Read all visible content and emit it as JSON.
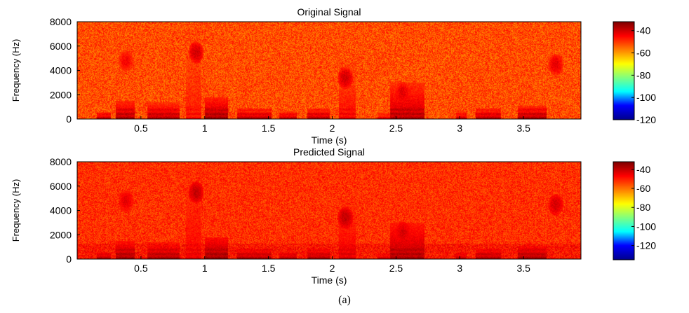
{
  "caption": "(a)",
  "colormap": [
    "#00008f",
    "#0000ff",
    "#00ffff",
    "#80ff80",
    "#ffff00",
    "#ff8000",
    "#ff0000",
    "#800000"
  ],
  "chart_data": [
    {
      "type": "heatmap",
      "title": "Original Signal",
      "xlabel": "Time (s)",
      "ylabel": "Frequency (Hz)",
      "xlim": [
        0,
        3.95
      ],
      "ylim": [
        0,
        8000
      ],
      "xticks": [
        "0.5",
        "1",
        "1.5",
        "2",
        "2.5",
        "3",
        "3.5"
      ],
      "xtick_values": [
        0.5,
        1,
        1.5,
        2,
        2.5,
        3,
        3.5
      ],
      "yticks": [
        "0",
        "2000",
        "4000",
        "6000",
        "8000"
      ],
      "ytick_values": [
        0,
        2000,
        4000,
        6000,
        8000
      ],
      "colorbar": {
        "ticks": [
          "-40",
          "-60",
          "-80",
          "-100",
          "-120"
        ],
        "tick_values": [
          -40,
          -60,
          -80,
          -100,
          -120
        ],
        "range": [
          -120,
          -32
        ]
      },
      "background_level": -52,
      "low_band_hz": 0,
      "speech_segments": [
        {
          "t": [
            0.15,
            0.26
          ],
          "f_max": 600,
          "level": -36
        },
        {
          "t": [
            0.3,
            0.45
          ],
          "f_max": 1500,
          "level": -35
        },
        {
          "t": [
            0.55,
            0.8
          ],
          "f_max": 1400,
          "level": -36
        },
        {
          "t": [
            0.85,
            0.97
          ],
          "f_max": 8000,
          "level": -44
        },
        {
          "t": [
            1.0,
            1.18
          ],
          "f_max": 1800,
          "level": -34
        },
        {
          "t": [
            1.25,
            1.52
          ],
          "f_max": 900,
          "level": -36
        },
        {
          "t": [
            1.58,
            1.72
          ],
          "f_max": 700,
          "level": -37
        },
        {
          "t": [
            1.8,
            1.98
          ],
          "f_max": 900,
          "level": -36
        },
        {
          "t": [
            2.05,
            2.18
          ],
          "f_max": 5000,
          "level": -42
        },
        {
          "t": [
            2.35,
            2.45
          ],
          "f_max": 600,
          "level": -40
        },
        {
          "t": [
            2.45,
            2.72
          ],
          "f_max": 3000,
          "level": -36
        },
        {
          "t": [
            2.97,
            3.05
          ],
          "f_max": 700,
          "level": -38
        },
        {
          "t": [
            3.12,
            3.32
          ],
          "f_max": 900,
          "level": -36
        },
        {
          "t": [
            3.45,
            3.68
          ],
          "f_max": 1100,
          "level": -35
        }
      ],
      "hot_spots": [
        {
          "t": 0.38,
          "f": 4800,
          "level": -44
        },
        {
          "t": 0.93,
          "f": 5500,
          "level": -40
        },
        {
          "t": 2.1,
          "f": 3400,
          "level": -40
        },
        {
          "t": 2.55,
          "f": 2200,
          "level": -42
        },
        {
          "t": 3.75,
          "f": 4500,
          "level": -42
        }
      ]
    },
    {
      "type": "heatmap",
      "title": "Predicted Signal",
      "xlabel": "Time (s)",
      "ylabel": "Frequency (Hz)",
      "xlim": [
        0,
        3.95
      ],
      "ylim": [
        0,
        8000
      ],
      "xticks": [
        "0.5",
        "1",
        "1.5",
        "2",
        "2.5",
        "3",
        "3.5"
      ],
      "xtick_values": [
        0.5,
        1,
        1.5,
        2,
        2.5,
        3,
        3.5
      ],
      "yticks": [
        "0",
        "2000",
        "4000",
        "6000",
        "8000"
      ],
      "ytick_values": [
        0,
        2000,
        4000,
        6000,
        8000
      ],
      "colorbar": {
        "ticks": [
          "-40",
          "-60",
          "-80",
          "-100",
          "-120"
        ],
        "tick_values": [
          -40,
          -60,
          -80,
          -100,
          -120
        ],
        "range": [
          -135,
          -32
        ]
      },
      "background_level": -52,
      "low_band_hz": 1300,
      "speech_segments": [
        {
          "t": [
            0.15,
            0.26
          ],
          "f_max": 600,
          "level": -36
        },
        {
          "t": [
            0.3,
            0.45
          ],
          "f_max": 1500,
          "level": -35
        },
        {
          "t": [
            0.55,
            0.8
          ],
          "f_max": 1400,
          "level": -36
        },
        {
          "t": [
            0.85,
            0.97
          ],
          "f_max": 8000,
          "level": -44
        },
        {
          "t": [
            1.0,
            1.18
          ],
          "f_max": 1800,
          "level": -34
        },
        {
          "t": [
            1.25,
            1.52
          ],
          "f_max": 900,
          "level": -36
        },
        {
          "t": [
            1.58,
            1.72
          ],
          "f_max": 700,
          "level": -37
        },
        {
          "t": [
            1.8,
            1.98
          ],
          "f_max": 900,
          "level": -36
        },
        {
          "t": [
            2.05,
            2.18
          ],
          "f_max": 5000,
          "level": -42
        },
        {
          "t": [
            2.35,
            2.45
          ],
          "f_max": 600,
          "level": -40
        },
        {
          "t": [
            2.45,
            2.72
          ],
          "f_max": 3000,
          "level": -36
        },
        {
          "t": [
            2.97,
            3.05
          ],
          "f_max": 700,
          "level": -38
        },
        {
          "t": [
            3.12,
            3.32
          ],
          "f_max": 900,
          "level": -36
        },
        {
          "t": [
            3.45,
            3.68
          ],
          "f_max": 1100,
          "level": -35
        }
      ],
      "hot_spots": [
        {
          "t": 0.38,
          "f": 4800,
          "level": -44
        },
        {
          "t": 0.93,
          "f": 5500,
          "level": -40
        },
        {
          "t": 2.1,
          "f": 3400,
          "level": -40
        },
        {
          "t": 2.55,
          "f": 2200,
          "level": -42
        },
        {
          "t": 3.75,
          "f": 4500,
          "level": -42
        }
      ]
    }
  ]
}
